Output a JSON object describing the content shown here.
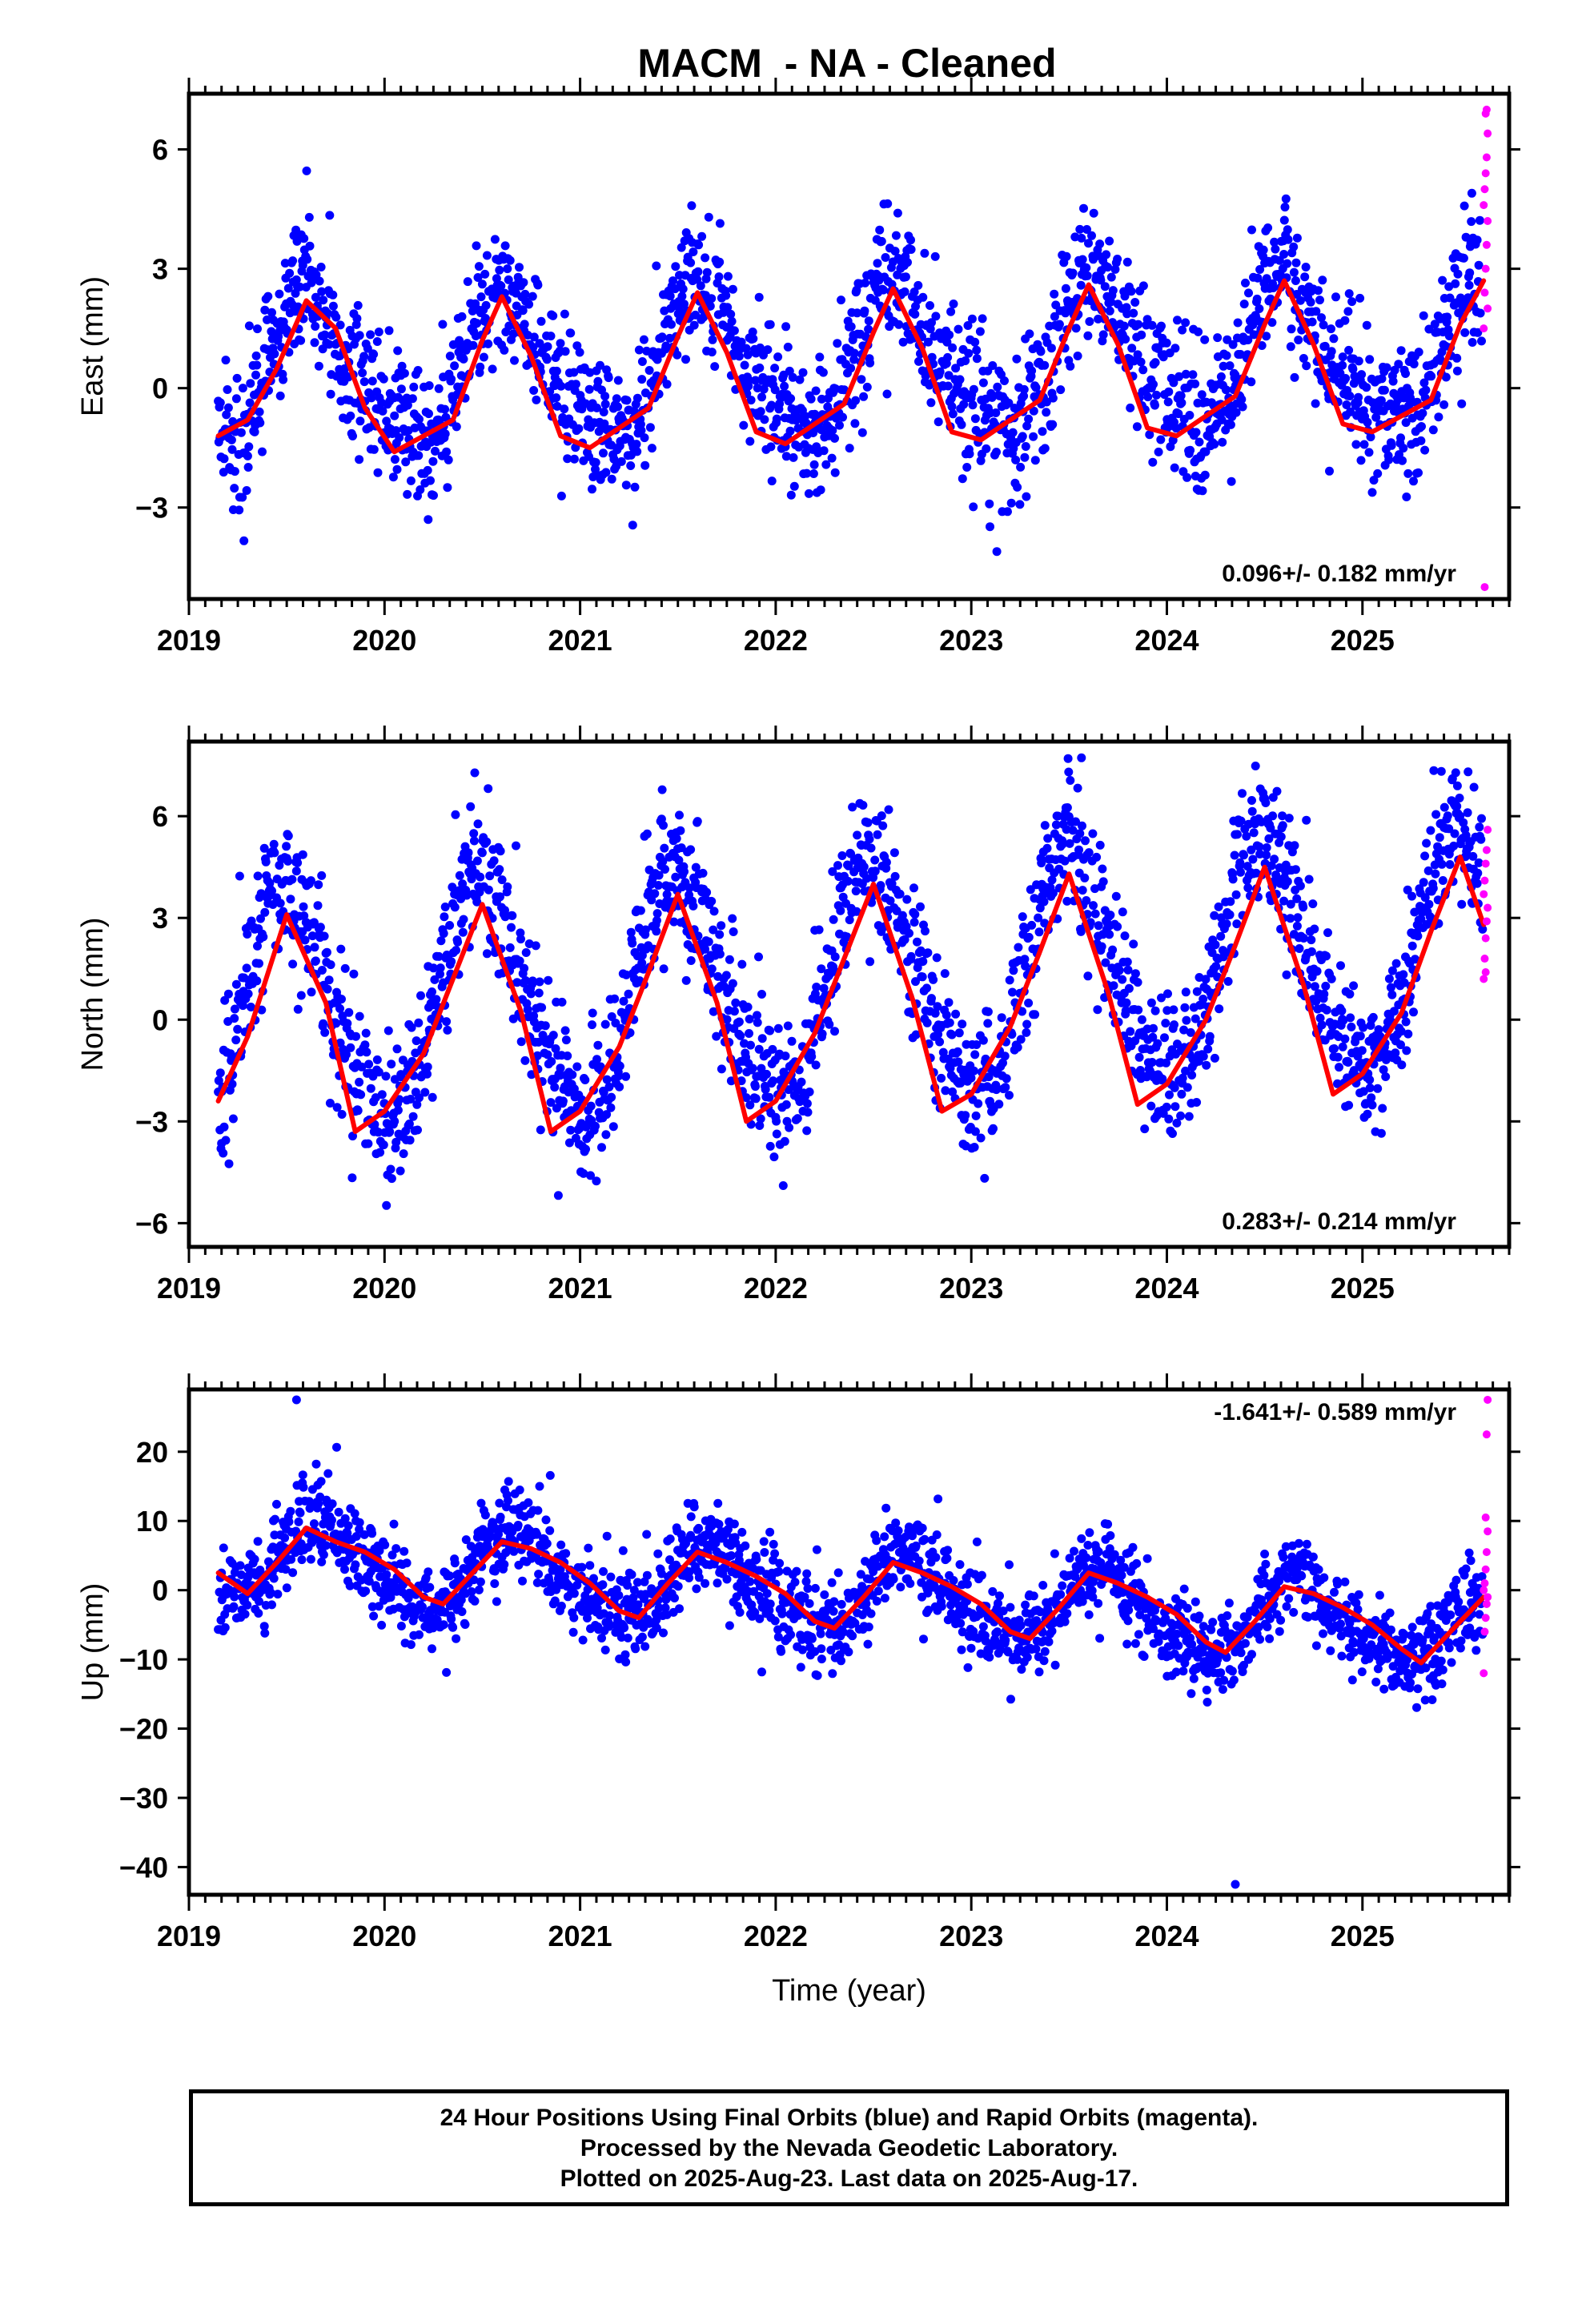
{
  "chart_title": "MACM  - NA - Cleaned",
  "colors": {
    "final_orbits": "#0000ff",
    "rapid_orbits": "#ff00ff",
    "fit": "#ff0000",
    "frame": "#000000"
  },
  "chart_data": [
    {
      "type": "scatter",
      "panel": "east",
      "ylabel": "East (mm)",
      "xlabel": "",
      "xlim": [
        2019.0,
        2025.75
      ],
      "ylim": [
        -5.3,
        7.4
      ],
      "xticks": [
        2019,
        2020,
        2021,
        2022,
        2023,
        2024,
        2025
      ],
      "xtick_labels": [
        "2019",
        "2020",
        "2021",
        "2022",
        "2023",
        "2024",
        "2025"
      ],
      "yticks": [
        -3,
        0,
        3,
        6
      ],
      "ytick_labels": [
        "−3",
        "0",
        "3",
        "6"
      ],
      "rate_label": "0.096+/- 0.182 mm/yr",
      "rate_label_position": "bottom-right",
      "model": {
        "offset": 0.3,
        "trend": 0.096,
        "annual_amplitude": 1.8,
        "annual_peak_phase": 0.62,
        "semiannual_amplitude": 0.45,
        "scatter_sd": 0.9
      },
      "fit_line": {
        "x": [
          2019.15,
          2019.3,
          2019.45,
          2019.6,
          2019.75,
          2019.9,
          2020.05,
          2020.2,
          2020.35,
          2020.5,
          2020.6,
          2020.75,
          2020.9,
          2021.05,
          2021.2,
          2021.35,
          2021.5,
          2021.6,
          2021.75,
          2021.9,
          2022.05,
          2022.2,
          2022.35,
          2022.5,
          2022.6,
          2022.75,
          2022.9,
          2023.05,
          2023.2,
          2023.35,
          2023.5,
          2023.6,
          2023.75,
          2023.9,
          2024.05,
          2024.2,
          2024.35,
          2024.5,
          2024.6,
          2024.75,
          2024.9,
          2025.05,
          2025.2,
          2025.35,
          2025.5,
          2025.62
        ],
        "y": [
          -1.2,
          -0.8,
          0.5,
          2.2,
          1.5,
          -0.5,
          -1.6,
          -1.2,
          -0.8,
          1.2,
          2.3,
          0.8,
          -1.2,
          -1.5,
          -1.0,
          -0.5,
          1.3,
          2.4,
          0.9,
          -1.1,
          -1.4,
          -0.9,
          -0.4,
          1.4,
          2.5,
          1.0,
          -1.1,
          -1.3,
          -0.8,
          -0.3,
          1.5,
          2.6,
          1.1,
          -1.0,
          -1.2,
          -0.7,
          -0.2,
          1.6,
          2.7,
          1.1,
          -0.9,
          -1.1,
          -0.7,
          -0.3,
          1.6,
          2.7
        ]
      },
      "rapid_points": {
        "x": [
          2025.62,
          2025.625,
          2025.63,
          2025.635,
          2025.64,
          2025.62,
          2025.625,
          2025.63,
          2025.635,
          2025.64,
          2025.63,
          2025.635,
          2025.64,
          2025.625
        ],
        "y": [
          1.5,
          2.4,
          3.0,
          3.6,
          4.2,
          4.6,
          5.0,
          5.4,
          5.8,
          6.4,
          6.9,
          7.0,
          2.0,
          -5.0
        ]
      }
    },
    {
      "type": "scatter",
      "panel": "north",
      "ylabel": "North (mm)",
      "xlabel": "",
      "xlim": [
        2019.0,
        2025.75
      ],
      "ylim": [
        -6.7,
        8.2
      ],
      "xticks": [
        2019,
        2020,
        2021,
        2022,
        2023,
        2024,
        2025
      ],
      "xtick_labels": [
        "2019",
        "2020",
        "2021",
        "2022",
        "2023",
        "2024",
        "2025"
      ],
      "yticks": [
        -6,
        -3,
        0,
        3,
        6
      ],
      "ytick_labels": [
        "−6",
        "−3",
        "0",
        "3",
        "6"
      ],
      "rate_label": "0.283+/- 0.214 mm/yr",
      "rate_label_position": "bottom-right",
      "model": {
        "offset": 0.1,
        "trend": 0.283,
        "annual_amplitude": 3.4,
        "annual_peak_phase": 0.5,
        "semiannual_amplitude": 0.4,
        "scatter_sd": 1.1
      },
      "fit_line": {
        "x": [
          2019.15,
          2019.3,
          2019.5,
          2019.7,
          2019.85,
          2020.0,
          2020.2,
          2020.35,
          2020.5,
          2020.7,
          2020.85,
          2021.0,
          2021.2,
          2021.35,
          2021.5,
          2021.7,
          2021.85,
          2022.0,
          2022.2,
          2022.35,
          2022.5,
          2022.7,
          2022.85,
          2023.0,
          2023.2,
          2023.35,
          2023.5,
          2023.7,
          2023.85,
          2024.0,
          2024.2,
          2024.35,
          2024.5,
          2024.7,
          2024.85,
          2025.0,
          2025.2,
          2025.35,
          2025.5,
          2025.62
        ],
        "y": [
          -2.4,
          -0.5,
          3.1,
          0.5,
          -3.3,
          -2.7,
          -1.0,
          1.2,
          3.4,
          0.2,
          -3.3,
          -2.7,
          -0.8,
          1.4,
          3.7,
          0.5,
          -3.0,
          -2.4,
          -0.4,
          1.8,
          4.0,
          0.6,
          -2.7,
          -2.2,
          -0.2,
          2.0,
          4.3,
          0.8,
          -2.5,
          -1.9,
          0.0,
          2.2,
          4.5,
          1.0,
          -2.2,
          -1.6,
          0.2,
          2.6,
          4.8,
          2.8
        ]
      },
      "rapid_points": {
        "x": [
          2025.62,
          2025.625,
          2025.63,
          2025.635,
          2025.64,
          2025.62,
          2025.625,
          2025.63,
          2025.635,
          2025.64,
          2025.63
        ],
        "y": [
          1.2,
          1.8,
          2.4,
          2.9,
          3.3,
          3.7,
          4.1,
          4.6,
          5.0,
          5.6,
          1.4
        ]
      }
    },
    {
      "type": "scatter",
      "panel": "up",
      "ylabel": "Up (mm)",
      "xlabel": "Time (year)",
      "xlim": [
        2019.0,
        2025.75
      ],
      "ylim": [
        -44,
        29
      ],
      "xticks": [
        2019,
        2020,
        2021,
        2022,
        2023,
        2024,
        2025
      ],
      "xtick_labels": [
        "2019",
        "2020",
        "2021",
        "2022",
        "2023",
        "2024",
        "2025"
      ],
      "yticks": [
        -40,
        -30,
        -20,
        -10,
        0,
        10,
        20
      ],
      "ytick_labels": [
        "−40",
        "−30",
        "−20",
        "−10",
        "0",
        "10",
        "20"
      ],
      "rate_label": "-1.641+/- 0.589 mm/yr",
      "rate_label_position": "top-right",
      "model": {
        "offset": 5.0,
        "trend": -1.641,
        "annual_amplitude": 5.5,
        "annual_peak_phase": 0.68,
        "semiannual_amplitude": 1.0,
        "scatter_sd": 3.2
      },
      "outliers": {
        "x": [
          2019.55,
          2024.35
        ],
        "y": [
          27.5,
          -42.5
        ]
      },
      "fit_line": {
        "x": [
          2019.15,
          2019.3,
          2019.45,
          2019.6,
          2019.75,
          2019.9,
          2020.05,
          2020.2,
          2020.3,
          2020.45,
          2020.6,
          2020.75,
          2020.9,
          2021.05,
          2021.2,
          2021.3,
          2021.45,
          2021.6,
          2021.75,
          2021.9,
          2022.05,
          2022.2,
          2022.3,
          2022.45,
          2022.6,
          2022.75,
          2022.9,
          2023.05,
          2023.2,
          2023.3,
          2023.45,
          2023.6,
          2023.75,
          2023.9,
          2024.05,
          2024.2,
          2024.3,
          2024.45,
          2024.6,
          2024.75,
          2024.9,
          2025.05,
          2025.2,
          2025.3,
          2025.45,
          2025.62
        ],
        "y": [
          2.5,
          -0.5,
          4.0,
          9.0,
          7.0,
          5.5,
          3.0,
          -1.0,
          -2.0,
          2.5,
          7.0,
          6.0,
          4.0,
          1.0,
          -3.0,
          -4.0,
          1.0,
          5.5,
          4.0,
          2.0,
          -0.5,
          -4.5,
          -5.5,
          -1.0,
          4.0,
          2.5,
          0.5,
          -2.0,
          -6.0,
          -7.0,
          -2.5,
          2.5,
          1.0,
          -1.0,
          -3.5,
          -7.5,
          -9.0,
          -4.5,
          0.5,
          -0.5,
          -2.5,
          -5.0,
          -8.5,
          -10.5,
          -6.0,
          -1.0
        ]
      },
      "rapid_points": {
        "x": [
          2025.62,
          2025.625,
          2025.63,
          2025.635,
          2025.64,
          2025.62,
          2025.625,
          2025.63,
          2025.635,
          2025.64,
          2025.63,
          2025.635,
          2025.64
        ],
        "y": [
          -12.0,
          -6.0,
          -4.0,
          -2.0,
          -1.0,
          0.0,
          1.0,
          3.0,
          5.5,
          8.5,
          10.5,
          22.5,
          27.5
        ]
      }
    }
  ],
  "footer": {
    "line1": "24 Hour Positions Using Final Orbits (blue) and Rapid Orbits (magenta).",
    "line2": "Processed by the Nevada Geodetic Laboratory.",
    "line3": "Plotted on 2025-Aug-23. Last data on 2025-Aug-17."
  }
}
